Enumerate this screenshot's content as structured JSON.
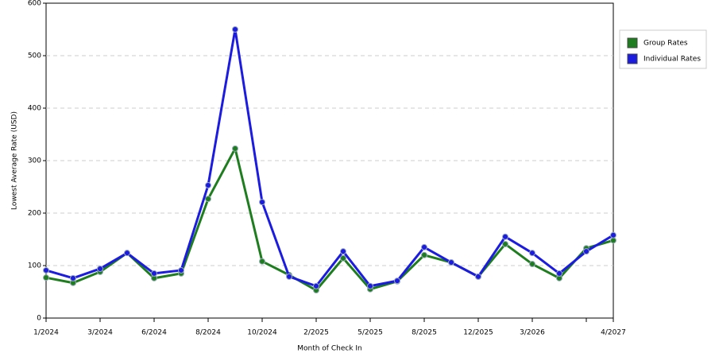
{
  "chart_data": {
    "type": "line",
    "x_label": "Month of Check In",
    "y_label": "Lowest Average Rate (USD)",
    "categories": [
      "1/2024",
      null,
      "3/2024",
      null,
      "6/2024",
      null,
      "8/2024",
      null,
      "10/2024",
      null,
      "2/2025",
      null,
      "5/2025",
      null,
      "8/2025",
      null,
      "12/2025",
      null,
      "3/2026",
      null,
      null,
      "4/2027"
    ],
    "series": [
      {
        "name": "Group Rates",
        "color": "#1e7d1e",
        "values": [
          77,
          67,
          88,
          124,
          76,
          85,
          227,
          323,
          108,
          82,
          53,
          114,
          55,
          70,
          120,
          106,
          79,
          141,
          103,
          76,
          133,
          148
        ]
      },
      {
        "name": "Individual Rates",
        "color": "#1c1ce0",
        "values": [
          91,
          76,
          94,
          124,
          85,
          91,
          253,
          550,
          221,
          79,
          61,
          127,
          61,
          71,
          135,
          106,
          79,
          155,
          124,
          85,
          127,
          158
        ]
      }
    ],
    "ylim": [
      0,
      600
    ],
    "yticks": [
      0,
      100,
      200,
      300,
      400,
      500,
      600
    ],
    "grid": true,
    "legend": "right"
  }
}
